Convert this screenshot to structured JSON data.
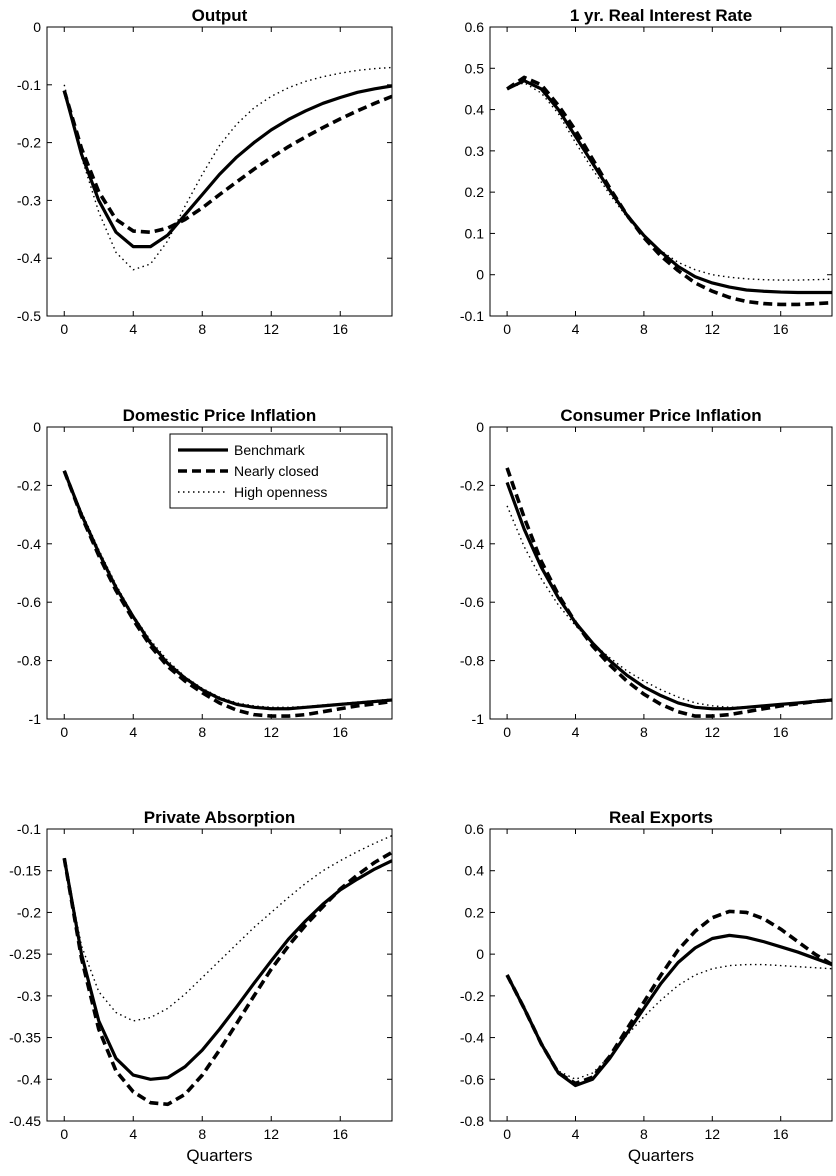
{
  "figure": {
    "series_styles": [
      {
        "key": "benchmark",
        "dash": "",
        "width": 3.2
      },
      {
        "key": "nearly_closed",
        "dash": "9,5",
        "width": 3.6
      },
      {
        "key": "high_openness",
        "dash": "1.5,3.5",
        "width": 1.4
      }
    ]
  },
  "chart_data": [
    {
      "type": "line",
      "title": "Output",
      "xlabel": "",
      "xlim": [
        -1,
        19
      ],
      "ylim": [
        -0.5,
        0
      ],
      "xticks": [
        0,
        4,
        8,
        12,
        16
      ],
      "yticks": [
        -0.5,
        -0.4,
        -0.3,
        -0.2,
        -0.1,
        0
      ],
      "ytick_labels": [
        "-0.5",
        "-0.4",
        "-0.3",
        "-0.2",
        "-0.1",
        "0"
      ],
      "legend": null,
      "x": [
        0,
        1,
        2,
        3,
        4,
        5,
        6,
        7,
        8,
        9,
        10,
        11,
        12,
        13,
        14,
        15,
        16,
        17,
        18,
        19
      ],
      "series": [
        {
          "key": "benchmark",
          "values": [
            -0.11,
            -0.22,
            -0.3,
            -0.355,
            -0.38,
            -0.38,
            -0.36,
            -0.325,
            -0.29,
            -0.255,
            -0.225,
            -0.2,
            -0.178,
            -0.16,
            -0.145,
            -0.132,
            -0.122,
            -0.113,
            -0.107,
            -0.102
          ]
        },
        {
          "key": "nearly_closed",
          "values": [
            -0.11,
            -0.21,
            -0.285,
            -0.333,
            -0.353,
            -0.355,
            -0.348,
            -0.333,
            -0.313,
            -0.29,
            -0.268,
            -0.246,
            -0.226,
            -0.207,
            -0.19,
            -0.174,
            -0.159,
            -0.145,
            -0.132,
            -0.12
          ]
        },
        {
          "key": "high_openness",
          "values": [
            -0.1,
            -0.225,
            -0.32,
            -0.39,
            -0.42,
            -0.41,
            -0.37,
            -0.31,
            -0.255,
            -0.205,
            -0.168,
            -0.14,
            -0.12,
            -0.105,
            -0.094,
            -0.086,
            -0.08,
            -0.075,
            -0.072,
            -0.07
          ]
        }
      ]
    },
    {
      "type": "line",
      "title": "1 yr. Real Interest Rate",
      "xlabel": "",
      "xlim": [
        -1,
        19
      ],
      "ylim": [
        -0.1,
        0.6
      ],
      "xticks": [
        0,
        4,
        8,
        12,
        16
      ],
      "yticks": [
        -0.1,
        0,
        0.1,
        0.2,
        0.3,
        0.4,
        0.5,
        0.6
      ],
      "ytick_labels": [
        "-0.1",
        "0",
        "0.1",
        "0.2",
        "0.3",
        "0.4",
        "0.5",
        "0.6"
      ],
      "legend": null,
      "x": [
        0,
        1,
        2,
        3,
        4,
        5,
        6,
        7,
        8,
        9,
        10,
        11,
        12,
        13,
        14,
        15,
        16,
        17,
        18,
        19
      ],
      "series": [
        {
          "key": "benchmark",
          "values": [
            0.45,
            0.47,
            0.45,
            0.4,
            0.335,
            0.27,
            0.205,
            0.145,
            0.095,
            0.055,
            0.02,
            -0.005,
            -0.02,
            -0.03,
            -0.037,
            -0.04,
            -0.042,
            -0.043,
            -0.043,
            -0.043
          ]
        },
        {
          "key": "nearly_closed",
          "values": [
            0.45,
            0.478,
            0.46,
            0.41,
            0.35,
            0.28,
            0.21,
            0.145,
            0.09,
            0.045,
            0.01,
            -0.02,
            -0.04,
            -0.055,
            -0.065,
            -0.07,
            -0.072,
            -0.072,
            -0.07,
            -0.068
          ]
        },
        {
          "key": "high_openness",
          "values": [
            0.45,
            0.465,
            0.44,
            0.39,
            0.32,
            0.255,
            0.195,
            0.14,
            0.093,
            0.058,
            0.03,
            0.012,
            0.0,
            -0.006,
            -0.01,
            -0.012,
            -0.013,
            -0.013,
            -0.012,
            -0.011
          ]
        }
      ]
    },
    {
      "type": "line",
      "title": "Domestic Price Inflation",
      "xlabel": "",
      "xlim": [
        -1,
        19
      ],
      "ylim": [
        -1,
        0
      ],
      "xticks": [
        0,
        4,
        8,
        12,
        16
      ],
      "yticks": [
        -1,
        -0.8,
        -0.6,
        -0.4,
        -0.2,
        0
      ],
      "ytick_labels": [
        "-1",
        "-0.8",
        "-0.6",
        "-0.4",
        "-0.2",
        "0"
      ],
      "legend": {
        "position": "top-right",
        "entries": [
          {
            "key": "benchmark",
            "label": "Benchmark"
          },
          {
            "key": "nearly_closed",
            "label": "Nearly closed"
          },
          {
            "key": "high_openness",
            "label": "High openness"
          }
        ]
      },
      "x": [
        0,
        1,
        2,
        3,
        4,
        5,
        6,
        7,
        8,
        9,
        10,
        11,
        12,
        13,
        14,
        15,
        16,
        17,
        18,
        19
      ],
      "series": [
        {
          "key": "benchmark",
          "values": [
            -0.15,
            -0.3,
            -0.43,
            -0.55,
            -0.65,
            -0.74,
            -0.81,
            -0.86,
            -0.9,
            -0.93,
            -0.95,
            -0.96,
            -0.965,
            -0.965,
            -0.96,
            -0.955,
            -0.95,
            -0.945,
            -0.94,
            -0.935
          ]
        },
        {
          "key": "nearly_closed",
          "values": [
            -0.15,
            -0.305,
            -0.44,
            -0.56,
            -0.66,
            -0.75,
            -0.82,
            -0.87,
            -0.91,
            -0.945,
            -0.97,
            -0.985,
            -0.99,
            -0.99,
            -0.985,
            -0.975,
            -0.965,
            -0.955,
            -0.948,
            -0.94
          ]
        },
        {
          "key": "high_openness",
          "values": [
            -0.15,
            -0.29,
            -0.42,
            -0.54,
            -0.645,
            -0.73,
            -0.8,
            -0.855,
            -0.895,
            -0.925,
            -0.945,
            -0.955,
            -0.96,
            -0.96,
            -0.957,
            -0.952,
            -0.947,
            -0.942,
            -0.937,
            -0.932
          ]
        }
      ]
    },
    {
      "type": "line",
      "title": "Consumer Price Inflation",
      "xlabel": "",
      "xlim": [
        -1,
        19
      ],
      "ylim": [
        -1,
        0
      ],
      "xticks": [
        0,
        4,
        8,
        12,
        16
      ],
      "yticks": [
        -1,
        -0.8,
        -0.6,
        -0.4,
        -0.2,
        0
      ],
      "ytick_labels": [
        "-1",
        "-0.8",
        "-0.6",
        "-0.4",
        "-0.2",
        "0"
      ],
      "legend": null,
      "x": [
        0,
        1,
        2,
        3,
        4,
        5,
        6,
        7,
        8,
        9,
        10,
        11,
        12,
        13,
        14,
        15,
        16,
        17,
        18,
        19
      ],
      "series": [
        {
          "key": "benchmark",
          "values": [
            -0.19,
            -0.35,
            -0.48,
            -0.585,
            -0.67,
            -0.74,
            -0.8,
            -0.85,
            -0.89,
            -0.92,
            -0.945,
            -0.96,
            -0.965,
            -0.965,
            -0.96,
            -0.955,
            -0.95,
            -0.945,
            -0.94,
            -0.935
          ]
        },
        {
          "key": "nearly_closed",
          "values": [
            -0.14,
            -0.31,
            -0.46,
            -0.575,
            -0.67,
            -0.75,
            -0.815,
            -0.87,
            -0.915,
            -0.95,
            -0.975,
            -0.99,
            -0.99,
            -0.985,
            -0.975,
            -0.965,
            -0.955,
            -0.948,
            -0.94,
            -0.935
          ]
        },
        {
          "key": "high_openness",
          "values": [
            -0.27,
            -0.41,
            -0.52,
            -0.61,
            -0.68,
            -0.74,
            -0.79,
            -0.835,
            -0.87,
            -0.9,
            -0.925,
            -0.945,
            -0.955,
            -0.96,
            -0.958,
            -0.953,
            -0.948,
            -0.943,
            -0.938,
            -0.932
          ]
        }
      ]
    },
    {
      "type": "line",
      "title": "Private Absorption",
      "xlabel": "Quarters",
      "xlim": [
        -1,
        19
      ],
      "ylim": [
        -0.45,
        -0.1
      ],
      "xticks": [
        0,
        4,
        8,
        12,
        16
      ],
      "yticks": [
        -0.45,
        -0.4,
        -0.35,
        -0.3,
        -0.25,
        -0.2,
        -0.15,
        -0.1
      ],
      "ytick_labels": [
        "-0.45",
        "-0.4",
        "-0.35",
        "-0.3",
        "-0.25",
        "-0.2",
        "-0.15",
        "-0.1"
      ],
      "legend": null,
      "x": [
        0,
        1,
        2,
        3,
        4,
        5,
        6,
        7,
        8,
        9,
        10,
        11,
        12,
        13,
        14,
        15,
        16,
        17,
        18,
        19
      ],
      "series": [
        {
          "key": "benchmark",
          "values": [
            -0.135,
            -0.25,
            -0.33,
            -0.375,
            -0.395,
            -0.4,
            -0.398,
            -0.385,
            -0.365,
            -0.34,
            -0.313,
            -0.285,
            -0.258,
            -0.232,
            -0.21,
            -0.19,
            -0.173,
            -0.16,
            -0.148,
            -0.138
          ]
        },
        {
          "key": "nearly_closed",
          "values": [
            -0.135,
            -0.255,
            -0.34,
            -0.39,
            -0.415,
            -0.428,
            -0.43,
            -0.418,
            -0.395,
            -0.365,
            -0.333,
            -0.3,
            -0.268,
            -0.24,
            -0.215,
            -0.193,
            -0.172,
            -0.155,
            -0.14,
            -0.128
          ]
        },
        {
          "key": "high_openness",
          "values": [
            -0.135,
            -0.24,
            -0.295,
            -0.32,
            -0.33,
            -0.326,
            -0.315,
            -0.298,
            -0.278,
            -0.258,
            -0.238,
            -0.218,
            -0.2,
            -0.182,
            -0.165,
            -0.15,
            -0.138,
            -0.127,
            -0.117,
            -0.108
          ]
        }
      ]
    },
    {
      "type": "line",
      "title": "Real Exports",
      "xlabel": "Quarters",
      "xlim": [
        -1,
        19
      ],
      "ylim": [
        -0.8,
        0.6
      ],
      "xticks": [
        0,
        4,
        8,
        12,
        16
      ],
      "yticks": [
        -0.8,
        -0.6,
        -0.4,
        -0.2,
        0,
        0.2,
        0.4,
        0.6
      ],
      "ytick_labels": [
        "-0.8",
        "-0.6",
        "-0.4",
        "-0.2",
        "0",
        "0.2",
        "0.4",
        "0.6"
      ],
      "legend": null,
      "x": [
        0,
        1,
        2,
        3,
        4,
        5,
        6,
        7,
        8,
        9,
        10,
        11,
        12,
        13,
        14,
        15,
        16,
        17,
        18,
        19
      ],
      "series": [
        {
          "key": "benchmark",
          "values": [
            -0.1,
            -0.26,
            -0.43,
            -0.57,
            -0.63,
            -0.6,
            -0.5,
            -0.38,
            -0.26,
            -0.14,
            -0.04,
            0.03,
            0.075,
            0.09,
            0.08,
            0.06,
            0.035,
            0.01,
            -0.02,
            -0.05
          ]
        },
        {
          "key": "nearly_closed",
          "values": [
            -0.1,
            -0.26,
            -0.43,
            -0.57,
            -0.62,
            -0.59,
            -0.49,
            -0.36,
            -0.23,
            -0.1,
            0.02,
            0.11,
            0.175,
            0.205,
            0.2,
            0.17,
            0.12,
            0.06,
            0.0,
            -0.05
          ]
        },
        {
          "key": "high_openness",
          "values": [
            -0.1,
            -0.26,
            -0.43,
            -0.56,
            -0.6,
            -0.57,
            -0.49,
            -0.39,
            -0.3,
            -0.22,
            -0.15,
            -0.1,
            -0.07,
            -0.055,
            -0.05,
            -0.05,
            -0.055,
            -0.06,
            -0.065,
            -0.07
          ]
        }
      ]
    }
  ]
}
